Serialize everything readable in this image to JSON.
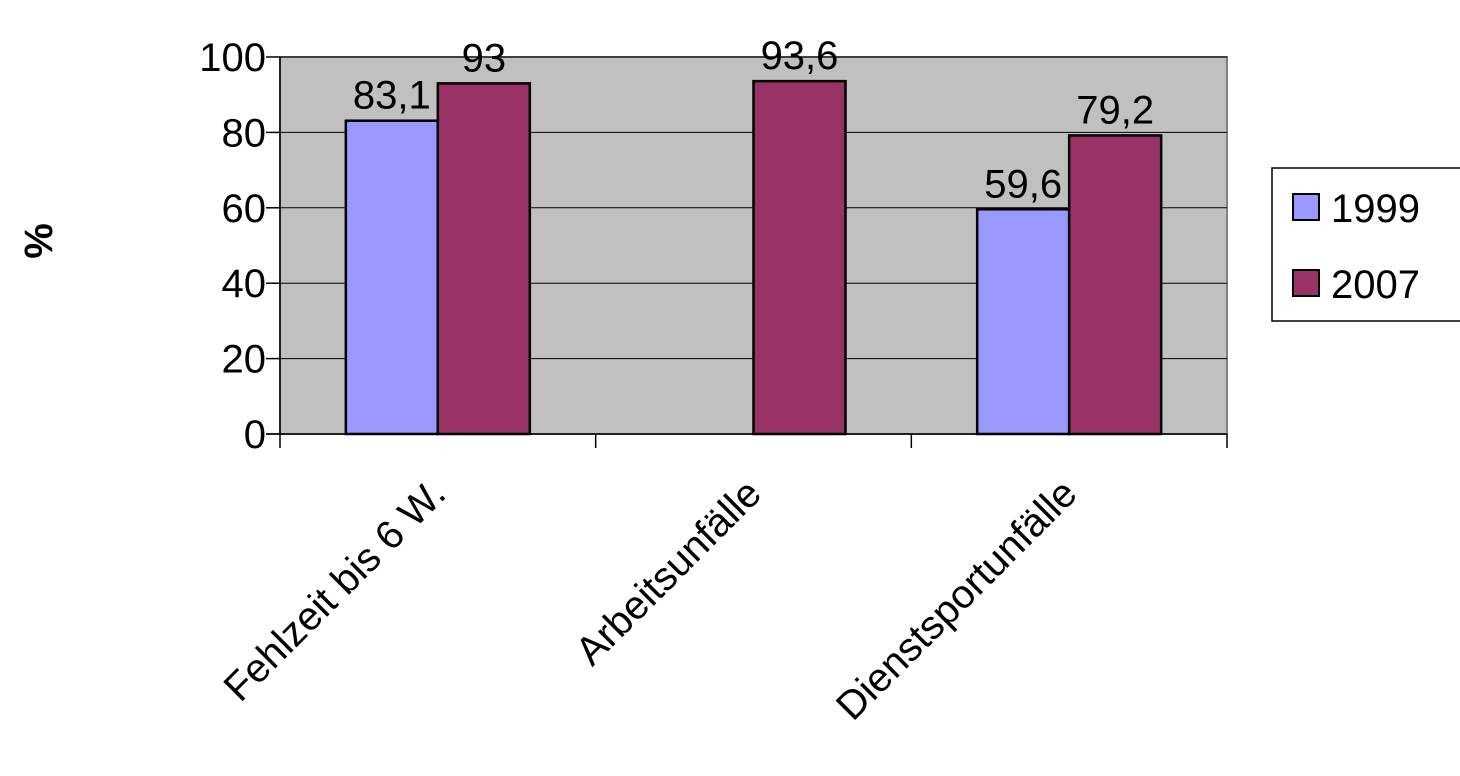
{
  "chart_data": {
    "type": "bar",
    "title": "",
    "xlabel": "",
    "ylabel": "%",
    "ylim": [
      0,
      100
    ],
    "yticks": [
      0,
      20,
      40,
      60,
      80,
      100
    ],
    "grid": true,
    "legend_position": "right",
    "categories": [
      "Fehlzeit bis 6 W.",
      "Arbeitsunfälle",
      "Dienstsportunfälle"
    ],
    "series": [
      {
        "name": "1999",
        "color": "#9999ff",
        "values": [
          83.1,
          null,
          59.6
        ],
        "labels": [
          "83,1",
          "",
          "59,6"
        ]
      },
      {
        "name": "2007",
        "color": "#993366",
        "values": [
          93,
          93.6,
          79.2
        ],
        "labels": [
          "93",
          "93,6",
          "79,2"
        ]
      }
    ],
    "plot_background": "#c0c0c0"
  }
}
